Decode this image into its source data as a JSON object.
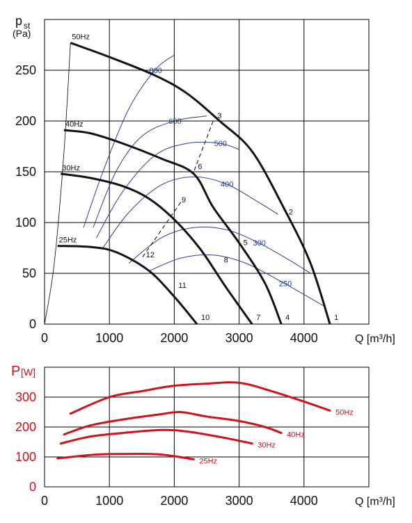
{
  "chart_data": [
    {
      "type": "line",
      "title": "",
      "ylabel": "p_st (Pa)",
      "ylabel_main": "p",
      "ylabel_sub": "st",
      "ylabel_unit": "(Pa)",
      "xlabel": "Q [m³/h]",
      "xlim": [
        0,
        5000
      ],
      "ylim": [
        0,
        300
      ],
      "xticks": [
        "0",
        "1000",
        "2000",
        "3000",
        "4000"
      ],
      "yticks": [
        "0",
        "50",
        "100",
        "150",
        "200",
        "250"
      ],
      "grid": true,
      "series": [
        {
          "name": "50Hz",
          "points": [
            [
              400,
              277
            ],
            [
              1000,
              263
            ],
            [
              1700,
              245
            ],
            [
              2200,
              227
            ],
            [
              2700,
              200
            ],
            [
              3200,
              170
            ],
            [
              3700,
              113
            ],
            [
              4100,
              60
            ],
            [
              4400,
              0
            ]
          ]
        },
        {
          "name": "40Hz",
          "points": [
            [
              300,
              191
            ],
            [
              700,
              188
            ],
            [
              1200,
              178
            ],
            [
              1800,
              163
            ],
            [
              2300,
              148
            ],
            [
              2600,
              115
            ],
            [
              3000,
              80
            ],
            [
              3400,
              40
            ],
            [
              3650,
              0
            ]
          ]
        },
        {
          "name": "30Hz",
          "points": [
            [
              250,
              148
            ],
            [
              700,
              144
            ],
            [
              1200,
              136
            ],
            [
              1600,
              124
            ],
            [
              2000,
              103
            ],
            [
              2400,
              74
            ],
            [
              2800,
              36
            ],
            [
              3200,
              0
            ]
          ]
        },
        {
          "name": "25Hz",
          "points": [
            [
              200,
              77
            ],
            [
              700,
              76
            ],
            [
              1100,
              71
            ],
            [
              1600,
              53
            ],
            [
              2000,
              27
            ],
            [
              2350,
              0
            ]
          ]
        }
      ],
      "efficiency_curves": [
        {
          "name": "800",
          "points": [
            [
              600,
              95
            ],
            [
              900,
              150
            ],
            [
              1300,
              212
            ],
            [
              1700,
              250
            ],
            [
              2000,
              265
            ]
          ]
        },
        {
          "name": "600",
          "points": [
            [
              750,
              95
            ],
            [
              1100,
              150
            ],
            [
              1500,
              185
            ],
            [
              2000,
              200
            ],
            [
              2500,
              205
            ]
          ]
        },
        {
          "name": "500",
          "points": [
            [
              800,
              85
            ],
            [
              1200,
              130
            ],
            [
              1700,
              166
            ],
            [
              2200,
              178
            ],
            [
              2700,
              178
            ],
            [
              3000,
              172
            ]
          ]
        },
        {
          "name": "400",
          "points": [
            [
              900,
              75
            ],
            [
              1300,
              110
            ],
            [
              1800,
              137
            ],
            [
              2300,
              145
            ],
            [
              2800,
              138
            ],
            [
              3300,
              120
            ],
            [
              3600,
              108
            ]
          ]
        },
        {
          "name": "300",
          "points": [
            [
              1300,
              60
            ],
            [
              1800,
              85
            ],
            [
              2300,
              95
            ],
            [
              2800,
              93
            ],
            [
              3300,
              80
            ],
            [
              3800,
              62
            ],
            [
              4100,
              50
            ]
          ]
        },
        {
          "name": "250",
          "points": [
            [
              1600,
              52
            ],
            [
              2100,
              65
            ],
            [
              2600,
              68
            ],
            [
              3100,
              60
            ],
            [
              3700,
              40
            ],
            [
              4300,
              18
            ]
          ]
        }
      ],
      "system_lines": [
        {
          "name": "3-6",
          "points": [
            [
              2600,
              200
            ],
            [
              2300,
              150
            ]
          ]
        },
        {
          "name": "9-12",
          "points": [
            [
              2100,
              120
            ],
            [
              1500,
              65
            ]
          ]
        }
      ],
      "points": [
        {
          "label": "1",
          "x": 4400,
          "y": 0
        },
        {
          "label": "2",
          "x": 3700,
          "y": 105
        },
        {
          "label": "3",
          "x": 2600,
          "y": 200
        },
        {
          "label": "4",
          "x": 3650,
          "y": 0
        },
        {
          "label": "5",
          "x": 3000,
          "y": 75
        },
        {
          "label": "6",
          "x": 2300,
          "y": 150
        },
        {
          "label": "7",
          "x": 3200,
          "y": 0
        },
        {
          "label": "8",
          "x": 2700,
          "y": 58
        },
        {
          "label": "9",
          "x": 2050,
          "y": 117
        },
        {
          "label": "10",
          "x": 2350,
          "y": 0
        },
        {
          "label": "11",
          "x": 2000,
          "y": 33
        },
        {
          "label": "12",
          "x": 1500,
          "y": 63
        }
      ]
    },
    {
      "type": "line",
      "title": "",
      "ylabel": "P[W]",
      "ylabel_main": "P",
      "ylabel_unit": "[W]",
      "xlabel": "Q [m³/h]",
      "xlim": [
        0,
        5000
      ],
      "ylim": [
        0,
        400
      ],
      "xticks": [
        "0",
        "1000",
        "2000",
        "3000",
        "4000"
      ],
      "yticks": [
        "0",
        "100",
        "200",
        "300"
      ],
      "grid": true,
      "series": [
        {
          "name": "50Hz",
          "points": [
            [
              400,
              245
            ],
            [
              1000,
              300
            ],
            [
              1500,
              320
            ],
            [
              2000,
              338
            ],
            [
              2500,
              345
            ],
            [
              3000,
              348
            ],
            [
              3500,
              320
            ],
            [
              4000,
              285
            ],
            [
              4400,
              255
            ]
          ]
        },
        {
          "name": "40Hz",
          "points": [
            [
              300,
              175
            ],
            [
              700,
              205
            ],
            [
              1200,
              225
            ],
            [
              1800,
              243
            ],
            [
              2100,
              250
            ],
            [
              2500,
              235
            ],
            [
              3000,
              220
            ],
            [
              3400,
              200
            ],
            [
              3650,
              180
            ]
          ]
        },
        {
          "name": "30Hz",
          "points": [
            [
              250,
              145
            ],
            [
              700,
              168
            ],
            [
              1200,
              180
            ],
            [
              1800,
              190
            ],
            [
              2200,
              185
            ],
            [
              2700,
              167
            ],
            [
              3200,
              145
            ]
          ]
        },
        {
          "name": "25Hz",
          "points": [
            [
              200,
              95
            ],
            [
              800,
              108
            ],
            [
              1300,
              110
            ],
            [
              1800,
              108
            ],
            [
              2300,
              92
            ]
          ]
        }
      ]
    }
  ]
}
